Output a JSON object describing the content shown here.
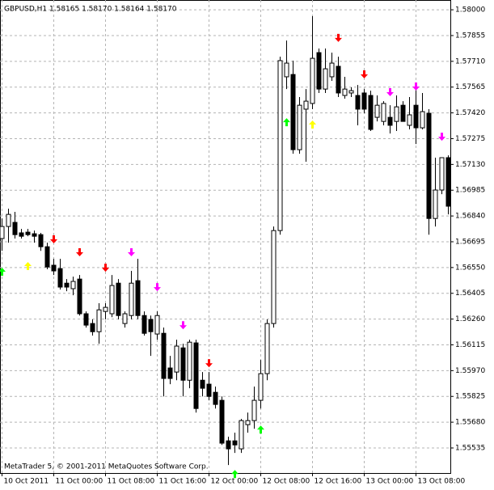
{
  "chart_data": {
    "type": "candlestick",
    "title": "GBPUSD,H1  1.58165 1.58170 1.58164 1.58170",
    "footer": "MetaTrader 5, © 2001-2011 MetaQuotes Software Corp.",
    "categories": [
      "10 Oct 2011",
      null,
      null,
      null,
      null,
      null,
      null,
      null,
      "11 Oct 00:00",
      null,
      null,
      null,
      null,
      null,
      null,
      null,
      "11 Oct 08:00",
      null,
      null,
      null,
      null,
      null,
      null,
      null,
      "11 Oct 16:00",
      null,
      null,
      null,
      null,
      null,
      null,
      null,
      "12 Oct 00:00",
      null,
      null,
      null,
      null,
      null,
      null,
      null,
      "12 Oct 08:00",
      null,
      null,
      null,
      null,
      null,
      null,
      null,
      "12 Oct 16:00",
      null,
      null,
      null,
      null,
      null,
      null,
      null,
      "13 Oct 00:00",
      null,
      null,
      null,
      null,
      null,
      null,
      null,
      "13 Oct 08:00",
      null,
      null,
      null,
      null,
      null
    ],
    "ohlc": [
      [
        1.56713,
        1.56826,
        1.56644,
        1.56781
      ],
      [
        1.56781,
        1.56881,
        1.5669,
        1.56849
      ],
      [
        1.56804,
        1.56863,
        1.56713,
        1.56735
      ],
      [
        1.56745,
        1.56767,
        1.56713,
        1.56726
      ],
      [
        1.56749,
        1.56767,
        1.56726,
        1.56735
      ],
      [
        1.5674,
        1.56758,
        1.5669,
        1.56726
      ],
      [
        1.56735,
        1.56745,
        1.56644,
        1.56667
      ],
      [
        1.56667,
        1.5669,
        1.5654,
        1.56553
      ],
      [
        1.56563,
        1.56599,
        1.56508,
        1.56531
      ],
      [
        1.56544,
        1.56599,
        1.56426,
        1.5644
      ],
      [
        1.56462,
        1.56485,
        1.56417,
        1.5644
      ],
      [
        1.56431,
        1.56499,
        1.56394,
        1.56472
      ],
      [
        1.56485,
        1.56508,
        1.5628,
        1.5629
      ],
      [
        1.5629,
        1.56303,
        1.56212,
        1.56226
      ],
      [
        1.56235,
        1.56258,
        1.56167,
        1.56189
      ],
      [
        1.56189,
        1.56349,
        1.56121,
        1.56312
      ],
      [
        1.56303,
        1.56349,
        1.56258,
        1.56326
      ],
      [
        1.5629,
        1.56508,
        1.56271,
        1.56449
      ],
      [
        1.56462,
        1.56485,
        1.56258,
        1.5628
      ],
      [
        1.56235,
        1.56303,
        1.56212,
        1.5629
      ],
      [
        1.5628,
        1.56531,
        1.56258,
        1.56462
      ],
      [
        1.56476,
        1.56599,
        1.56258,
        1.5628
      ],
      [
        1.5628,
        1.56303,
        1.56167,
        1.5618
      ],
      [
        1.56258,
        1.5628,
        1.56053,
        1.56189
      ],
      [
        1.56176,
        1.56303,
        1.56144,
        1.5628
      ],
      [
        1.5618,
        1.56212,
        1.55825,
        1.55926
      ],
      [
        1.55985,
        1.56053,
        1.55894,
        1.55926
      ],
      [
        1.55962,
        1.56144,
        1.55916,
        1.56108
      ],
      [
        1.56098,
        1.56121,
        1.55825,
        1.55916
      ],
      [
        1.55916,
        1.56144,
        1.55871,
        1.5613
      ],
      [
        1.56126,
        1.56144,
        1.55734,
        1.55757
      ],
      [
        1.55916,
        1.55962,
        1.55825,
        1.55871
      ],
      [
        1.55894,
        1.55962,
        1.55803,
        1.55825
      ],
      [
        1.55848,
        1.5588,
        1.55757,
        1.5578
      ],
      [
        1.55803,
        1.55825,
        1.55552,
        1.55562
      ],
      [
        1.55575,
        1.55598,
        1.55439,
        1.5553
      ],
      [
        1.55575,
        1.55621,
        1.55507,
        1.55552
      ],
      [
        1.5553,
        1.55698,
        1.55507,
        1.55689
      ],
      [
        1.55666,
        1.55734,
        1.55621,
        1.55689
      ],
      [
        1.55689,
        1.5588,
        1.55643,
        1.55803
      ],
      [
        1.55803,
        1.5603,
        1.55757,
        1.55953
      ],
      [
        1.55953,
        1.56258,
        1.55916,
        1.56235
      ],
      [
        1.56235,
        1.56781,
        1.56212,
        1.56758
      ],
      [
        1.56758,
        1.57736,
        1.56735,
        1.57714
      ],
      [
        1.57623,
        1.57827,
        1.57554,
        1.577
      ],
      [
        1.57636,
        1.57714,
        1.5719,
        1.57213
      ],
      [
        1.57213,
        1.57509,
        1.5719,
        1.57463
      ],
      [
        1.57441,
        1.57554,
        1.57145,
        1.57486
      ],
      [
        1.57473,
        1.57964,
        1.57441,
        1.57727
      ],
      [
        1.57759,
        1.57782,
        1.57532,
        1.57554
      ],
      [
        1.57554,
        1.57782,
        1.57532,
        1.57668
      ],
      [
        1.57623,
        1.57759,
        1.576,
        1.577
      ],
      [
        1.57682,
        1.57736,
        1.57509,
        1.57532
      ],
      [
        1.57518,
        1.57623,
        1.575,
        1.57554
      ],
      [
        1.57532,
        1.57564,
        1.57509,
        1.57545
      ],
      [
        1.57518,
        1.57577,
        1.5735,
        1.57441
      ],
      [
        1.57532,
        1.57554,
        1.57418,
        1.57441
      ],
      [
        1.57518,
        1.57545,
        1.57318,
        1.57327
      ],
      [
        1.57395,
        1.57518,
        1.57372,
        1.57463
      ],
      [
        1.57372,
        1.57486,
        1.5735,
        1.57473
      ],
      [
        1.57395,
        1.57463,
        1.57304,
        1.5735
      ],
      [
        1.57372,
        1.57518,
        1.57318,
        1.57454
      ],
      [
        1.57463,
        1.57486,
        1.57395,
        1.57372
      ],
      [
        1.5735,
        1.57509,
        1.57327,
        1.57409
      ],
      [
        1.57463,
        1.57554,
        1.57245,
        1.57336
      ],
      [
        1.57336,
        1.57532,
        1.57327,
        1.57427
      ],
      [
        1.57418,
        1.57441,
        1.56735,
        1.56826
      ],
      [
        1.56826,
        1.57168,
        1.56781,
        1.56986
      ],
      [
        1.56986,
        1.57168,
        1.56963,
        1.57168
      ],
      [
        1.57168,
        1.57181,
        1.56849,
        1.56895
      ]
    ],
    "up_color": "#ffffff",
    "down_color": "#000000",
    "arrows": [
      {
        "index": 0,
        "price": 1.56531,
        "color": "#00ff00",
        "direction": "up"
      },
      {
        "index": 4,
        "price": 1.56563,
        "color": "#ffff00",
        "direction": "up"
      },
      {
        "index": 8,
        "price": 1.56704,
        "color": "#ff0000",
        "direction": "down"
      },
      {
        "index": 12,
        "price": 1.56631,
        "color": "#ff0000",
        "direction": "down"
      },
      {
        "index": 16,
        "price": 1.56544,
        "color": "#ff0000",
        "direction": "down"
      },
      {
        "index": 20,
        "price": 1.56631,
        "color": "#ff00ff",
        "direction": "down"
      },
      {
        "index": 24,
        "price": 1.56435,
        "color": "#ff00ff",
        "direction": "down"
      },
      {
        "index": 28,
        "price": 1.56221,
        "color": "#ff00ff",
        "direction": "down"
      },
      {
        "index": 32,
        "price": 1.56007,
        "color": "#ff0000",
        "direction": "down"
      },
      {
        "index": 36,
        "price": 1.55393,
        "color": "#00ff00",
        "direction": "up"
      },
      {
        "index": 40,
        "price": 1.55643,
        "color": "#00ff00",
        "direction": "up"
      },
      {
        "index": 44,
        "price": 1.57372,
        "color": "#00ff00",
        "direction": "up"
      },
      {
        "index": 48,
        "price": 1.57359,
        "color": "#ffff00",
        "direction": "up"
      },
      {
        "index": 52,
        "price": 1.57837,
        "color": "#ff0000",
        "direction": "down"
      },
      {
        "index": 56,
        "price": 1.57632,
        "color": "#ff0000",
        "direction": "down"
      },
      {
        "index": 60,
        "price": 1.57532,
        "color": "#ff00ff",
        "direction": "down"
      },
      {
        "index": 64,
        "price": 1.57564,
        "color": "#ff00ff",
        "direction": "down"
      },
      {
        "index": 68,
        "price": 1.57281,
        "color": "#ff00ff",
        "direction": "down"
      }
    ],
    "ylim": [
      1.55394,
      1.58055
    ],
    "yticks": [
      {
        "value": 1.58,
        "label": "1.58000"
      },
      {
        "value": 1.57855,
        "label": "1.57855"
      },
      {
        "value": 1.5771,
        "label": "1.57710"
      },
      {
        "value": 1.57565,
        "label": "1.57565"
      },
      {
        "value": 1.5742,
        "label": "1.57420"
      },
      {
        "value": 1.57275,
        "label": "1.57275"
      },
      {
        "value": 1.5713,
        "label": "1.57130"
      },
      {
        "value": 1.56985,
        "label": "1.56985"
      },
      {
        "value": 1.5684,
        "label": "1.56840"
      },
      {
        "value": 1.56695,
        "label": "1.56695"
      },
      {
        "value": 1.5655,
        "label": "1.56550"
      },
      {
        "value": 1.56405,
        "label": "1.56405"
      },
      {
        "value": 1.5626,
        "label": "1.56260"
      },
      {
        "value": 1.56115,
        "label": "1.56115"
      },
      {
        "value": 1.5597,
        "label": "1.55970"
      },
      {
        "value": 1.55825,
        "label": "1.55825"
      },
      {
        "value": 1.5568,
        "label": "1.55680"
      },
      {
        "value": 1.55535,
        "label": "1.55535"
      }
    ],
    "grid": true
  }
}
